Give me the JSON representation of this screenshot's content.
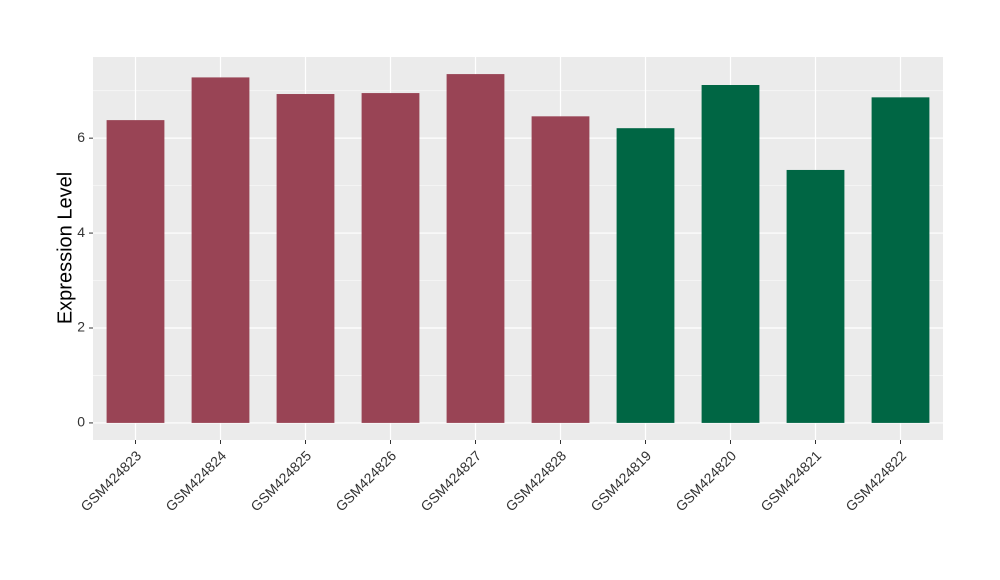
{
  "chart_data": {
    "type": "bar",
    "y_label": "Expression Level",
    "categories": [
      "GSM424823",
      "GSM424824",
      "GSM424825",
      "GSM424826",
      "GSM424827",
      "GSM424828",
      "GSM424819",
      "GSM424820",
      "GSM424821",
      "GSM424822"
    ],
    "values": [
      6.38,
      7.28,
      6.93,
      6.95,
      7.35,
      6.46,
      6.21,
      7.12,
      5.33,
      6.86
    ],
    "colors": [
      "#994455",
      "#994455",
      "#994455",
      "#994455",
      "#994455",
      "#994455",
      "#006644",
      "#006644",
      "#006644",
      "#006644"
    ],
    "ylim": [
      -0.36,
      7.71
    ],
    "yticks": [
      0,
      2,
      4,
      6
    ],
    "minor_yticks": [
      1,
      3,
      5,
      7
    ],
    "grid": true,
    "panel_color": "#ebebeb"
  }
}
